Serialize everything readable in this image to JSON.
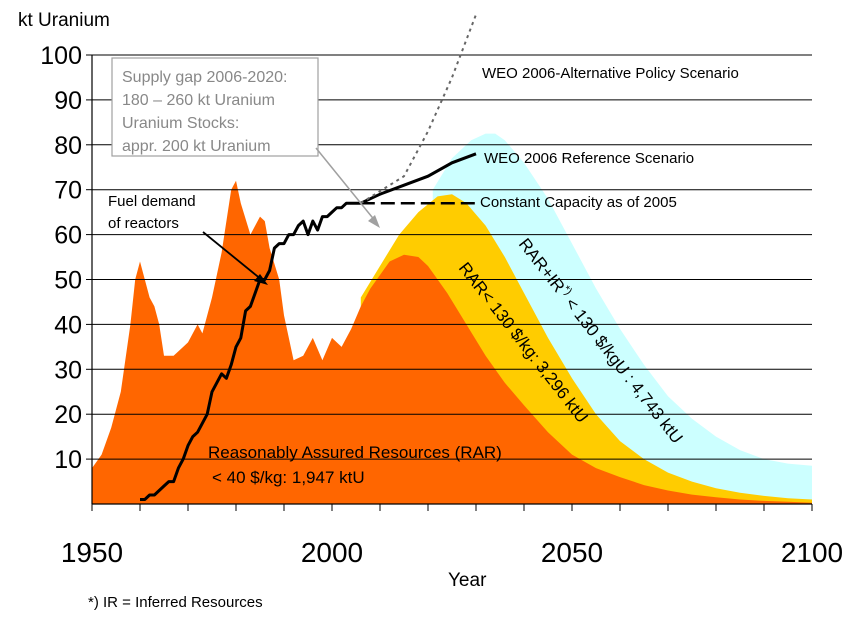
{
  "chart_data": {
    "type": "area",
    "ylabel": "kt Uranium",
    "xlabel": "Year",
    "xlim": [
      1950,
      2100
    ],
    "ylim": [
      0,
      100
    ],
    "x_ticks": [
      "1950",
      "2000",
      "2050",
      "2100"
    ],
    "y_ticks": [
      "10",
      "20",
      "30",
      "40",
      "50",
      "60",
      "70",
      "80",
      "90",
      "100"
    ],
    "grid": "horizontal",
    "colors": {
      "orange": "#FF6600",
      "gold": "#FFCC00",
      "lightblue": "#CCFFFF",
      "line": "#000000",
      "dotted": "#666666",
      "note_text": "#888888"
    },
    "annotations": {
      "supply_gap": [
        "Supply gap 2006-2020:",
        "180 – 260 kt Uranium",
        "Uranium Stocks:",
        "appr. 200 kt Uranium"
      ],
      "fuel_demand": [
        "Fuel demand",
        "of reactors"
      ],
      "weo_alt": "WEO 2006-Alternative Policy Scenario",
      "weo_ref": "WEO 2006 Reference Scenario",
      "constant": "Constant Capacity as of 2005",
      "rar130": "RAR< 130 $/kg: 3,296 ktU",
      "rar_ir_part1": "RAR+IR",
      "rar_ir_sup": "*)",
      "rar_ir_part2": " < 130 $/kgU : 4,743 ktU",
      "rar_low_line1": "Reasonably Assured Resources (RAR)",
      "rar_low_line2": "< 40 $/kg: 1,947 ktU",
      "footnote": "*) IR = Inferred Resources"
    },
    "series": [
      {
        "name": "Reasonably Assured Resources (RAR) < 40 $/kg: 1,947 ktU",
        "color": "#FF6600",
        "x": [
          1950,
          1952,
          1954,
          1956,
          1958,
          1959,
          1960,
          1961,
          1962,
          1963,
          1964,
          1965,
          1967,
          1969,
          1970,
          1972,
          1973,
          1975,
          1977,
          1979,
          1980,
          1981,
          1983,
          1985,
          1986,
          1987,
          1989,
          1990,
          1992,
          1994,
          1996,
          1998,
          2000,
          2002,
          2004,
          2006,
          2008,
          2010,
          2012,
          2015,
          2018,
          2020,
          2024,
          2028,
          2032,
          2036,
          2040,
          2045,
          2050,
          2055,
          2060,
          2065,
          2070,
          2075,
          2080,
          2085,
          2090,
          2095,
          2100
        ],
        "values": [
          8,
          11,
          17,
          25,
          40,
          50,
          54,
          50,
          46,
          44,
          40,
          33,
          33,
          35,
          36,
          40,
          38,
          46,
          56,
          70,
          72,
          67,
          60,
          64,
          63,
          57,
          50,
          42,
          32,
          33,
          37,
          32,
          37,
          35,
          39,
          44,
          48,
          51,
          54,
          55.5,
          55,
          53,
          47,
          40,
          33,
          27,
          22,
          16,
          11,
          8,
          6,
          4.2,
          3,
          2.1,
          1.5,
          1,
          0.7,
          0.5,
          0.3
        ]
      },
      {
        "name": "RAR< 130 $/kg: 3,296 ktU",
        "color": "#FFCC00",
        "x": [
          2006,
          2010,
          2014,
          2018,
          2022,
          2025,
          2028,
          2032,
          2036,
          2040,
          2045,
          2050,
          2055,
          2060,
          2065,
          2070,
          2075,
          2080,
          2085,
          2090,
          2095,
          2100
        ],
        "values": [
          46,
          53,
          60,
          65,
          68.5,
          69,
          67,
          62,
          55,
          47,
          37,
          28,
          20,
          14,
          10,
          7,
          5,
          3.5,
          2.5,
          1.8,
          1.3,
          1
        ]
      },
      {
        "name": "RAR+IR*) < 130 $/kgU : 4,743 ktU",
        "color": "#CCFFFF",
        "x": [
          2021,
          2025,
          2029,
          2032,
          2034,
          2036,
          2040,
          2045,
          2050,
          2055,
          2060,
          2065,
          2070,
          2075,
          2080,
          2085,
          2090,
          2095,
          2100
        ],
        "values": [
          70,
          77,
          81,
          82.5,
          82.5,
          81,
          76,
          68,
          58,
          48,
          39,
          31,
          24,
          19,
          15,
          12,
          10,
          9,
          8.5
        ]
      },
      {
        "name": "Fuel demand of reactors",
        "color": "#000000",
        "x": [
          1960,
          1961,
          1962,
          1963,
          1964,
          1965,
          1966,
          1967,
          1968,
          1969,
          1970,
          1971,
          1972,
          1973,
          1974,
          1975,
          1976,
          1977,
          1978,
          1979,
          1980,
          1981,
          1982,
          1983,
          1984,
          1985,
          1986,
          1987,
          1988,
          1989,
          1990,
          1991,
          1992,
          1993,
          1994,
          1995,
          1996,
          1997,
          1998,
          1999,
          2000,
          2001,
          2002,
          2003,
          2004,
          2005,
          2006
        ],
        "values": [
          1,
          1,
          2,
          2,
          3,
          4,
          5,
          5,
          8,
          10,
          13,
          15,
          16,
          18,
          20,
          25,
          27,
          29,
          28,
          31,
          35,
          37,
          43,
          44,
          47,
          50,
          50,
          52,
          57,
          58,
          58,
          60,
          60,
          62,
          63,
          60,
          63,
          61,
          64,
          64,
          65,
          66,
          66,
          67,
          67,
          67,
          67
        ]
      },
      {
        "name": "WEO 2006 Reference Scenario",
        "color": "#000000",
        "x": [
          2006,
          2010,
          2015,
          2020,
          2025,
          2030
        ],
        "values": [
          67,
          69,
          71,
          73,
          76,
          78
        ]
      },
      {
        "name": "Constant Capacity as of 2005",
        "color": "#000000",
        "x": [
          2006,
          2030
        ],
        "values": [
          67,
          67
        ]
      },
      {
        "name": "WEO 2006-Alternative Policy Scenario",
        "color": "#666666",
        "x": [
          2006,
          2015,
          2020,
          2025,
          2030
        ],
        "values": [
          67,
          73,
          83,
          95,
          109
        ]
      }
    ]
  }
}
